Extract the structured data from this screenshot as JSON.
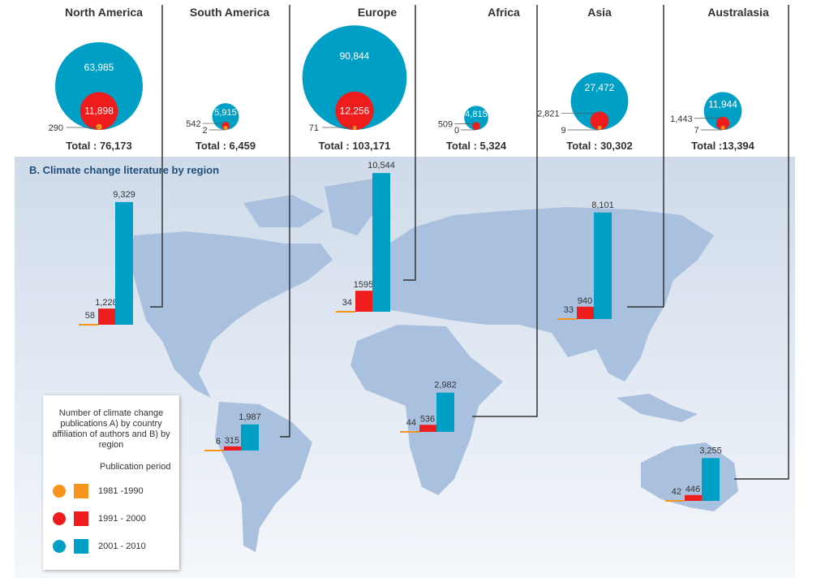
{
  "chart_data": {
    "type": "bubble-and-bar infographic",
    "section_b_title": "B. Climate change literature by region",
    "total_prefix": "Total : ",
    "periods": [
      "1981 -1990",
      "1991 - 2000",
      "2001 - 2010"
    ],
    "colors": {
      "1981 -1990": "#f7941d",
      "1991 - 2000": "#ee1c1c",
      "2001 - 2010": "#00a0c6"
    },
    "regions": [
      {
        "name": "North America",
        "total_label": "Total : 76,173",
        "by_country": [
          290,
          11898,
          63985
        ],
        "by_country_labels": [
          "290",
          "11,898",
          "63,985"
        ],
        "by_region": [
          58,
          1228,
          9329
        ],
        "by_region_labels": [
          "58",
          "1,228",
          "9,329"
        ]
      },
      {
        "name": "South America",
        "total_label": "Total : 6,459",
        "by_country": [
          2,
          542,
          5915
        ],
        "by_country_labels": [
          "2",
          "542",
          "5,915"
        ],
        "by_region": [
          6,
          315,
          1987
        ],
        "by_region_labels": [
          "6",
          "315",
          "1,987"
        ]
      },
      {
        "name": "Europe",
        "total_label": "Total : 103,171",
        "by_country": [
          71,
          12256,
          90844
        ],
        "by_country_labels": [
          "71",
          "12,256",
          "90,844"
        ],
        "by_region": [
          34,
          1595,
          10544
        ],
        "by_region_labels": [
          "34",
          "1595",
          "10,544"
        ]
      },
      {
        "name": "Africa",
        "total_label": "Total : 5,324",
        "by_country": [
          0,
          509,
          4815
        ],
        "by_country_labels": [
          "0",
          "509",
          "4,815"
        ],
        "by_region": [
          44,
          536,
          2982
        ],
        "by_region_labels": [
          "44",
          "536",
          "2,982"
        ]
      },
      {
        "name": "Asia",
        "total_label": "Total : 30,302",
        "by_country": [
          9,
          2821,
          27472
        ],
        "by_country_labels": [
          "9",
          "2,821",
          "27,472"
        ],
        "by_region": [
          33,
          940,
          8101
        ],
        "by_region_labels": [
          "33",
          "940",
          "8,101"
        ]
      },
      {
        "name": "Australasia",
        "total_label": "Total :13,394",
        "by_country": [
          7,
          1443,
          11944
        ],
        "by_country_labels": [
          "7",
          "1,443",
          "11,944"
        ],
        "by_region": [
          42,
          446,
          3255
        ],
        "by_region_labels": [
          "42",
          "446",
          "3,255"
        ]
      }
    ]
  },
  "legend": {
    "title": "Number of climate change publications A) by country affiliation of authors and B) by region",
    "period_heading": "Publication period",
    "items": [
      "1981 -1990",
      "1991 - 2000",
      "2001 - 2010"
    ]
  }
}
